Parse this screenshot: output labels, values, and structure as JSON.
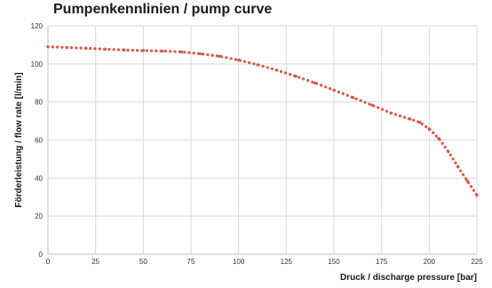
{
  "chart_data": {
    "type": "line",
    "title": "Pumpenkennlinien / pump curve",
    "xlabel": "Druck / discharge pressure [bar]",
    "ylabel": "Förderleistung / flow rate  [l/min]",
    "xlim": [
      0,
      225
    ],
    "ylim": [
      0,
      120
    ],
    "x_ticks": [
      0,
      25,
      50,
      75,
      100,
      125,
      150,
      175,
      200,
      225
    ],
    "y_ticks": [
      0,
      20,
      40,
      60,
      80,
      100,
      120
    ],
    "grid": true,
    "legend": "none",
    "series": [
      {
        "color": "#d9574a",
        "line_style": "dotted",
        "x": [
          0,
          10,
          20,
          30,
          40,
          50,
          60,
          70,
          80,
          90,
          100,
          110,
          120,
          130,
          140,
          150,
          160,
          170,
          180,
          190,
          195,
          200,
          205,
          210,
          215,
          220,
          225
        ],
        "y": [
          109,
          108.6,
          108.2,
          107.7,
          107.3,
          107,
          106.7,
          106.3,
          105.3,
          104,
          102,
          99.5,
          96.7,
          93.5,
          90,
          86.2,
          82.3,
          78.3,
          74.2,
          71,
          69.3,
          65.8,
          60.8,
          54,
          46,
          38.5,
          31
        ]
      }
    ]
  }
}
